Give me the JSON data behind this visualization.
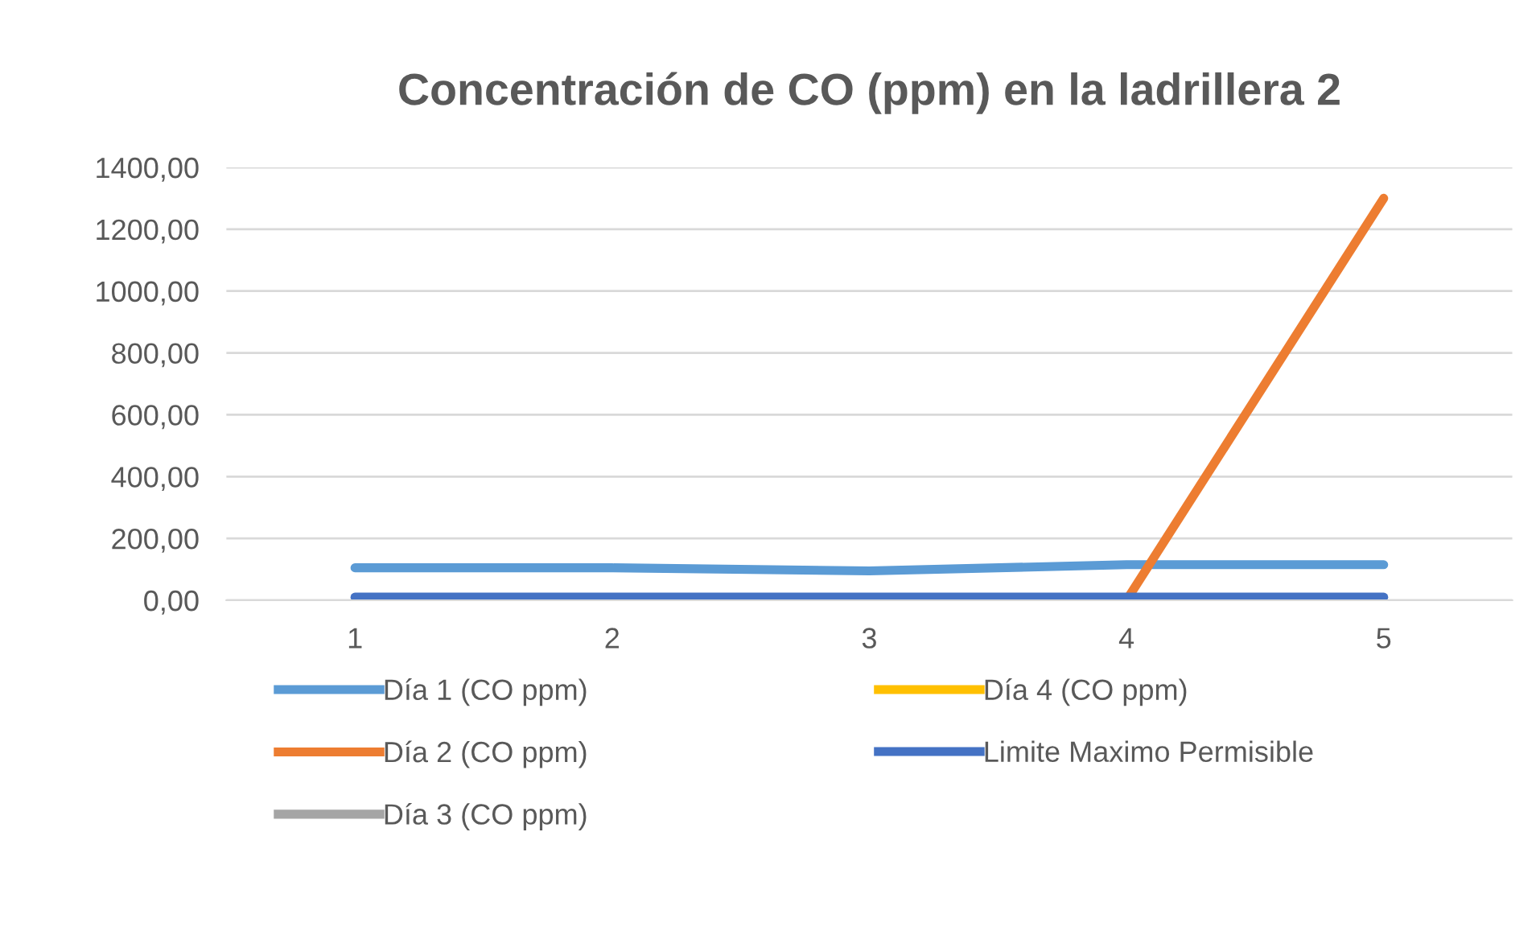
{
  "chart_data": {
    "type": "line",
    "title": "Concentración de CO (ppm) en la ladrillera 2",
    "categories": [
      "1",
      "2",
      "3",
      "4",
      "5"
    ],
    "series": [
      {
        "name": "Día 1 (CO ppm)",
        "color": "#5b9bd5",
        "values": [
          105,
          105,
          95,
          115,
          115
        ]
      },
      {
        "name": "Día 2 (CO ppm)",
        "color": "#ed7d31",
        "values": [
          null,
          null,
          null,
          0,
          1300
        ]
      },
      {
        "name": "Día 3 (CO ppm)",
        "color": "#a5a5a5",
        "values": [
          null,
          null,
          null,
          null,
          null
        ]
      },
      {
        "name": "Día 4 (CO ppm)",
        "color": "#ffc000",
        "values": [
          null,
          null,
          null,
          null,
          null
        ]
      },
      {
        "name": "Limite Maximo Permisible",
        "color": "#4472c4",
        "values": [
          10,
          10,
          10,
          10,
          10
        ]
      }
    ],
    "ylim": [
      0,
      1400
    ],
    "yticks": [
      {
        "value": 0,
        "label": "0,00"
      },
      {
        "value": 200,
        "label": "200,00"
      },
      {
        "value": 400,
        "label": "400,00"
      },
      {
        "value": 600,
        "label": "600,00"
      },
      {
        "value": 800,
        "label": "800,00"
      },
      {
        "value": 1000,
        "label": "1000,00"
      },
      {
        "value": 1200,
        "label": "1200,00"
      },
      {
        "value": 1400,
        "label": "1400,00"
      }
    ],
    "grid": "y",
    "legend": "bottom",
    "marker": "none",
    "line_style": "solid"
  }
}
